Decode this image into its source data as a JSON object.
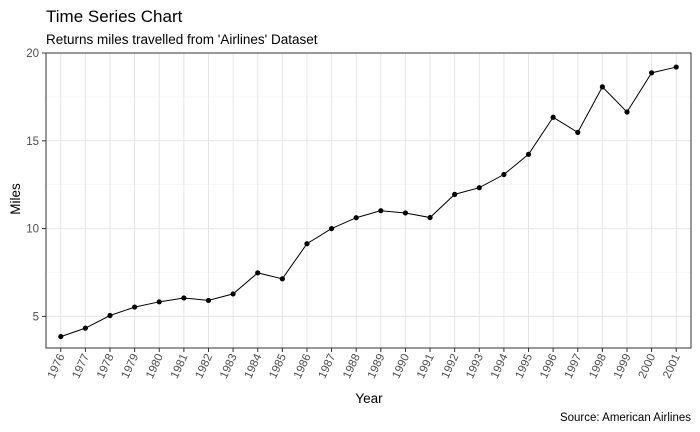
{
  "chart_data": {
    "type": "line",
    "title": "Time Series Chart",
    "subtitle": "Returns miles travelled from 'Airlines' Dataset",
    "caption": "Source: American Airlines",
    "xlabel": "Year",
    "ylabel": "Miles",
    "ylim": [
      3.2,
      20.0
    ],
    "yticks": [
      5,
      10,
      15,
      20
    ],
    "grid": true,
    "categories": [
      "1976",
      "1977",
      "1978",
      "1979",
      "1980",
      "1981",
      "1982",
      "1983",
      "1984",
      "1985",
      "1986",
      "1987",
      "1988",
      "1989",
      "1990",
      "1991",
      "1992",
      "1993",
      "1994",
      "1995",
      "1996",
      "1997",
      "1998",
      "1999",
      "2000",
      "2001"
    ],
    "values": [
      3.85,
      4.33,
      5.05,
      5.53,
      5.83,
      6.05,
      5.91,
      6.28,
      7.48,
      7.14,
      9.14,
      10.0,
      10.62,
      11.02,
      10.89,
      10.63,
      11.95,
      12.33,
      13.08,
      14.23,
      16.34,
      15.48,
      18.07,
      16.64,
      18.87,
      19.2
    ],
    "series_color": "#000000",
    "grid_color": "#e6e6e6"
  }
}
